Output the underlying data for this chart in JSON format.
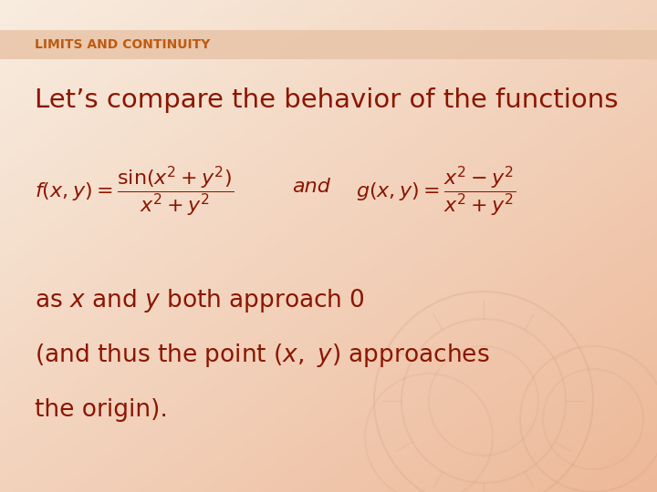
{
  "title": "LIMITS AND CONTINUITY",
  "title_color": "#C05A10",
  "title_fontsize": 10,
  "heading": "Let’s compare the behavior of the functions",
  "heading_color": "#8B1500",
  "heading_fontsize": 21,
  "formula_color": "#8B1500",
  "formula_fontsize": 16,
  "body_lines": [
    "as $x$ and $y$ both approach 0",
    "(and thus the point $(x,\\ y)$ approaches",
    "the origin)."
  ],
  "body_fontsize": 19,
  "body_color": "#8B1500",
  "bg_left_color": "#F8EDE0",
  "bg_right_color": "#EDB898",
  "title_bar_color": "#E8C4A8",
  "title_bar_alpha": 0.85,
  "decor_color": "#C09070"
}
